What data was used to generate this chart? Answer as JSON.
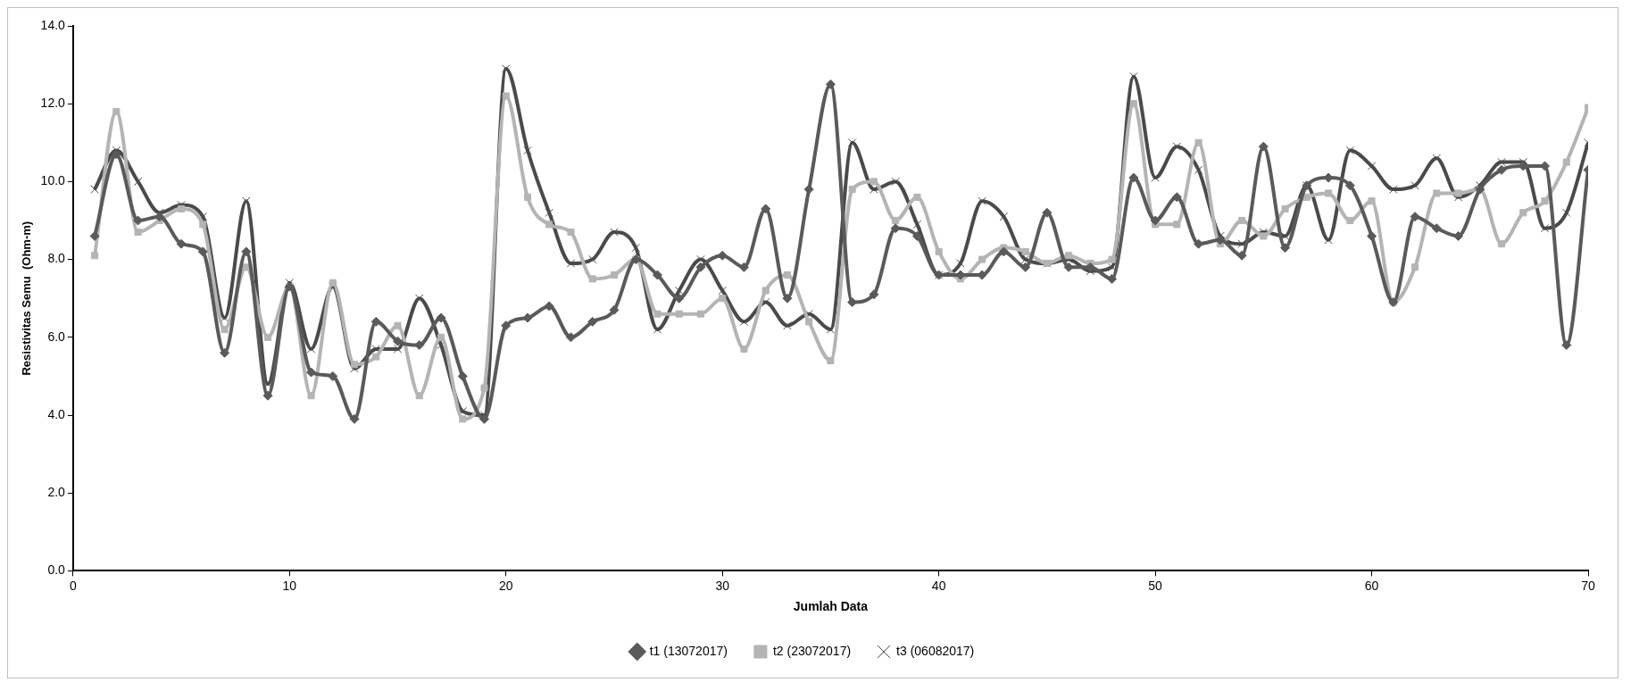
{
  "chart_data": {
    "type": "line",
    "xlabel": "Jumlah Data",
    "ylabel": "Resistivitas Semu  (Ohm-m)",
    "x": [
      1,
      2,
      3,
      4,
      5,
      6,
      7,
      8,
      9,
      10,
      11,
      12,
      13,
      14,
      15,
      16,
      17,
      18,
      19,
      20,
      21,
      22,
      23,
      24,
      25,
      26,
      27,
      28,
      29,
      30,
      31,
      32,
      33,
      34,
      35,
      36,
      37,
      38,
      39,
      40,
      41,
      42,
      43,
      44,
      45,
      46,
      47,
      48,
      49,
      50,
      51,
      52,
      53,
      54,
      55,
      56,
      57,
      58,
      59,
      60,
      61,
      62,
      63,
      64,
      65,
      66,
      67,
      68,
      69,
      70
    ],
    "xlim": [
      0,
      70
    ],
    "xticks": [
      0,
      10,
      20,
      30,
      40,
      50,
      60,
      70
    ],
    "ylim": [
      0,
      14
    ],
    "yticks": [
      {
        "value": 0,
        "label": "0.0"
      },
      {
        "value": 2,
        "label": "2.0"
      },
      {
        "value": 4,
        "label": "4.0"
      },
      {
        "value": 6,
        "label": "6.0"
      },
      {
        "value": 8,
        "label": "8.0"
      },
      {
        "value": 10,
        "label": "10.0"
      },
      {
        "value": 12,
        "label": "12.0"
      },
      {
        "value": 14,
        "label": "14.0"
      }
    ],
    "grid": false,
    "legend": "bottom",
    "series": [
      {
        "name": "t1 (13072017)",
        "color": "#5a5a5a",
        "marker": "diamond",
        "values": [
          8.6,
          10.7,
          9.0,
          9.1,
          8.4,
          8.2,
          5.6,
          8.2,
          4.5,
          7.3,
          5.1,
          5.0,
          3.9,
          6.4,
          5.9,
          5.8,
          6.5,
          5.0,
          3.9,
          6.3,
          6.5,
          6.8,
          6.0,
          6.4,
          6.7,
          8.0,
          7.6,
          7.0,
          7.8,
          8.1,
          7.8,
          9.3,
          7.0,
          9.8,
          12.5,
          6.9,
          7.1,
          8.8,
          8.6,
          7.6,
          7.6,
          7.6,
          8.2,
          7.8,
          9.2,
          7.8,
          7.8,
          7.5,
          10.1,
          9.0,
          9.6,
          8.4,
          8.5,
          8.1,
          10.9,
          8.3,
          9.9,
          10.1,
          9.9,
          8.6,
          6.9,
          9.1,
          8.8,
          8.6,
          9.8,
          10.3,
          10.4,
          10.4,
          5.8,
          10.3
        ]
      },
      {
        "name": "t2 (23072017)",
        "color": "#b4b4b4",
        "marker": "square",
        "values": [
          8.1,
          11.8,
          8.7,
          9.0,
          9.3,
          8.9,
          6.2,
          7.8,
          6.0,
          7.3,
          4.5,
          7.4,
          5.3,
          5.5,
          6.3,
          4.5,
          6.0,
          3.9,
          4.7,
          12.2,
          9.6,
          8.9,
          8.7,
          7.5,
          7.6,
          8.0,
          6.6,
          6.6,
          6.6,
          7.0,
          5.7,
          7.2,
          7.6,
          6.4,
          5.4,
          9.8,
          10.0,
          9.0,
          9.6,
          8.2,
          7.5,
          8.0,
          8.3,
          8.2,
          7.9,
          8.1,
          7.9,
          8.0,
          12.0,
          8.9,
          8.9,
          11.0,
          8.4,
          9.0,
          8.6,
          9.3,
          9.6,
          9.7,
          9.0,
          9.5,
          6.9,
          7.8,
          9.7,
          9.7,
          9.8,
          8.4,
          9.2,
          9.5,
          10.5,
          11.9
        ]
      },
      {
        "name": "t3 (06082017)",
        "color": "#4a4a4a",
        "marker": "cross",
        "values": [
          9.8,
          10.8,
          10.0,
          9.2,
          9.4,
          9.1,
          6.5,
          9.5,
          4.8,
          7.4,
          5.7,
          7.3,
          5.2,
          5.7,
          5.7,
          7.0,
          5.8,
          4.1,
          4.0,
          12.9,
          10.8,
          9.2,
          7.9,
          8.0,
          8.7,
          8.3,
          6.2,
          7.2,
          8.0,
          7.2,
          6.4,
          6.9,
          6.3,
          6.6,
          6.2,
          11.0,
          9.8,
          10.0,
          8.9,
          7.6,
          7.9,
          9.5,
          9.1,
          8.0,
          7.9,
          8.0,
          7.7,
          7.8,
          12.7,
          10.1,
          10.9,
          10.3,
          8.6,
          8.4,
          8.7,
          8.6,
          9.9,
          8.5,
          10.8,
          10.4,
          9.8,
          9.9,
          10.6,
          9.6,
          9.9,
          10.5,
          10.5,
          8.8,
          9.2,
          11.0
        ]
      }
    ]
  }
}
